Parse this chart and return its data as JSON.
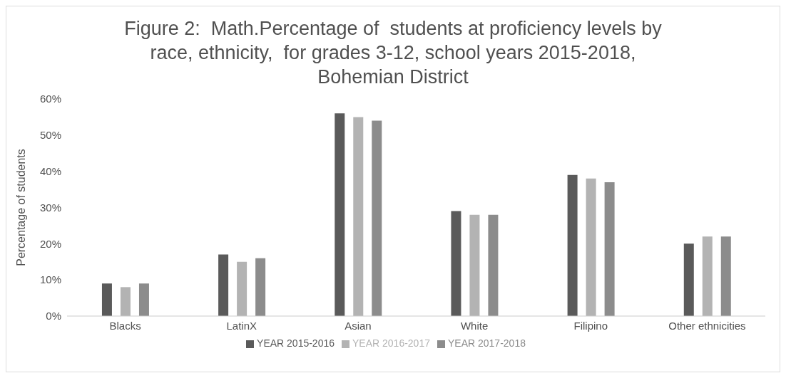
{
  "chart_data": {
    "type": "bar",
    "title": "Figure 2:  Math.Percentage of  students at proficiency levels by race, ethnicity,  for grades 3-12, school years 2015-2018, Bohemian District",
    "ylabel": "Percentage of students",
    "categories": [
      "Blacks",
      "LatinX",
      "Asian",
      "White",
      "Filipino",
      "Other ethnicities"
    ],
    "series": [
      {
        "name": "YEAR 2015-2016",
        "color": "#5a5a5a",
        "values": [
          9,
          17,
          56,
          29,
          39,
          20
        ]
      },
      {
        "name": "YEAR 2016-2017",
        "color": "#b3b3b3",
        "values": [
          8,
          15,
          55,
          28,
          38,
          22
        ]
      },
      {
        "name": "YEAR 2017-2018",
        "color": "#8c8c8c",
        "values": [
          9,
          16,
          54,
          28,
          37,
          22
        ]
      }
    ],
    "ylim": [
      0,
      60
    ],
    "yticks": [
      {
        "value": 0,
        "label": "0%"
      },
      {
        "value": 10,
        "label": "10%"
      },
      {
        "value": 20,
        "label": "20%"
      },
      {
        "value": 30,
        "label": "30%"
      },
      {
        "value": 40,
        "label": "40%"
      },
      {
        "value": 50,
        "label": "50%"
      },
      {
        "value": 60,
        "label": "60%"
      }
    ],
    "grid": false,
    "legend": "bottom"
  }
}
